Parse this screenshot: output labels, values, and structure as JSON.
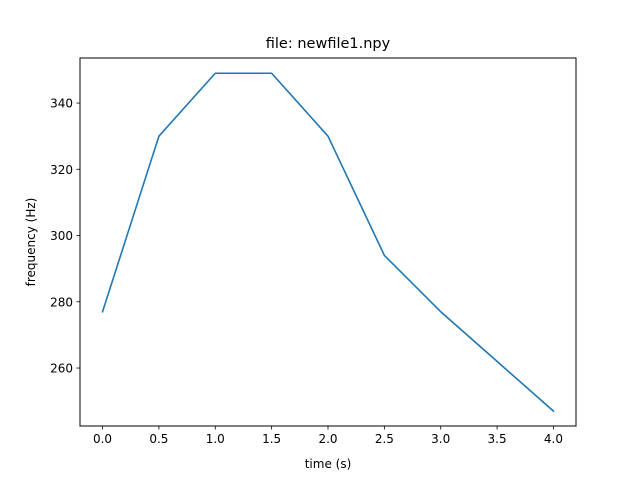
{
  "chart_data": {
    "type": "line",
    "title": "file: newfile1.npy",
    "xlabel": "time (s)",
    "ylabel": "frequency (Hz)",
    "xlim": [
      -0.2,
      4.2
    ],
    "ylim": [
      242.5,
      353.6
    ],
    "xticks": [
      0.0,
      0.5,
      1.0,
      1.5,
      2.0,
      2.5,
      3.0,
      3.5,
      4.0
    ],
    "xtick_labels": [
      "0.0",
      "0.5",
      "1.0",
      "1.5",
      "2.0",
      "2.5",
      "3.0",
      "3.5",
      "4.0"
    ],
    "yticks": [
      260,
      280,
      300,
      320,
      340
    ],
    "ytick_labels": [
      "260",
      "280",
      "300",
      "320",
      "340"
    ],
    "grid": false,
    "series": [
      {
        "color": "#1f77b4",
        "x": [
          0.0,
          0.5,
          1.0,
          1.5,
          2.0,
          2.5,
          3.0,
          3.5,
          4.0
        ],
        "y": [
          277,
          330,
          349,
          349,
          330,
          294,
          277,
          262,
          247
        ]
      }
    ]
  }
}
